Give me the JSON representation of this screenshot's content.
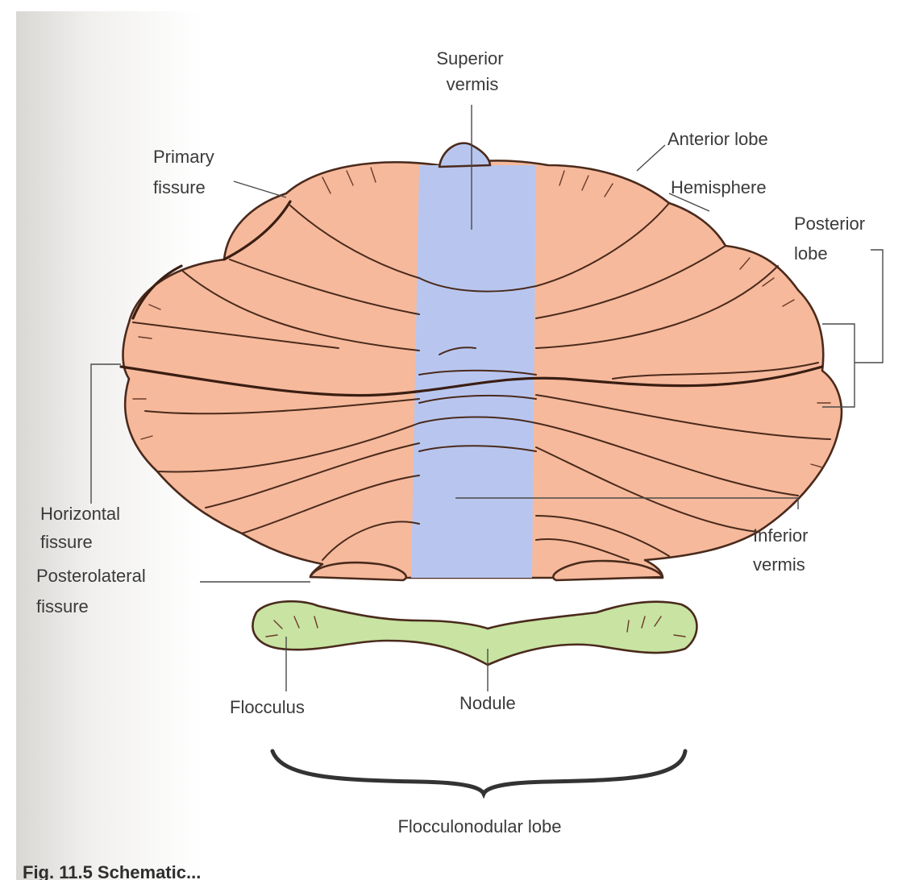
{
  "labels": {
    "superior_vermis": [
      "Superior",
      "vermis"
    ],
    "anterior_lobe": "Anterior lobe",
    "primary_fissure": [
      "Primary",
      "fissure"
    ],
    "hemisphere": "Hemisphere",
    "posterior_lobe": [
      "Posterior",
      "lobe"
    ],
    "horizontal_fissure": [
      "Horizontal",
      "fissure"
    ],
    "inferior_vermis": [
      "Inferior",
      "vermis"
    ],
    "posterolateral_fissure": [
      "Posterolateral",
      "fissure"
    ],
    "flocculus": "Flocculus",
    "nodule": "Nodule",
    "flocculonodular_lobe": "Flocculonodular lobe"
  },
  "caption": "Fig. 11.5  Schematic...",
  "colors": {
    "hemisphere_fill": "#f6b99c",
    "vermis_fill": "#b8c6ef",
    "flocculonodular_fill": "#c8e3a2",
    "outline": "#4a2a1c",
    "page_shadow": "#d7d5d2"
  }
}
